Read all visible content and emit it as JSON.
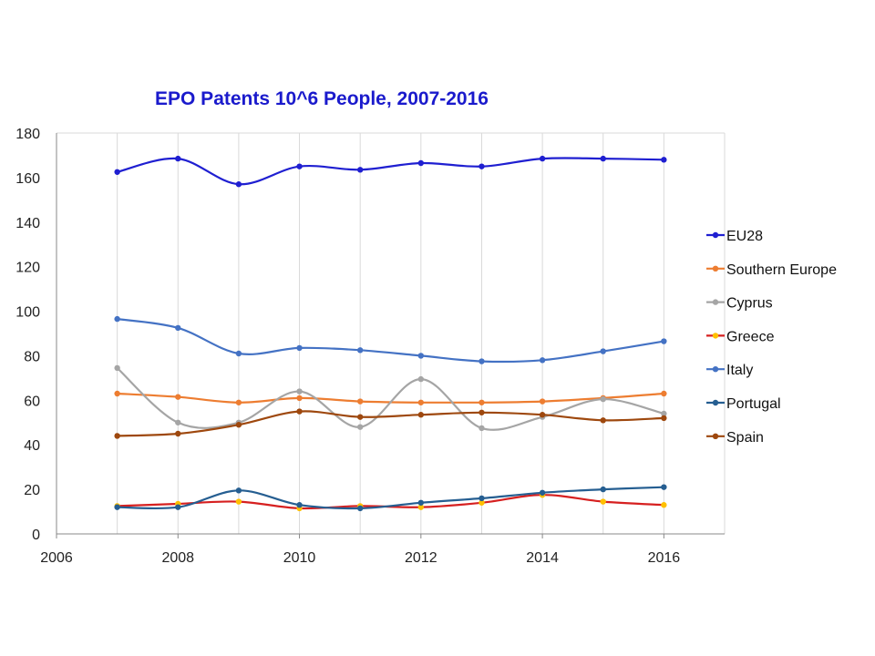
{
  "chart_data": {
    "type": "line",
    "title": "EPO Patents 10^6 People, 2007-2016",
    "xlabel": "",
    "ylabel": "",
    "xlim": [
      2006,
      2017
    ],
    "ylim": [
      0,
      180
    ],
    "x_ticks": [
      "2006",
      "2008",
      "2010",
      "2012",
      "2014",
      "2016"
    ],
    "y_ticks": [
      "0",
      "20",
      "40",
      "60",
      "80",
      "100",
      "120",
      "140",
      "160",
      "180"
    ],
    "grid": "vertical gridlines",
    "legend_position": "right",
    "x": [
      2007,
      2008,
      2009,
      2010,
      2011,
      2012,
      2013,
      2014,
      2015,
      2016
    ],
    "series": [
      {
        "name": "EU28",
        "color": "#1f1fd1",
        "values": [
          162.5,
          168.5,
          157,
          165,
          163.5,
          166.5,
          165,
          168.5,
          168.5,
          168
        ]
      },
      {
        "name": "Southern Europe",
        "color": "#ed7d31",
        "values": [
          63,
          61.5,
          59,
          61,
          59.5,
          59,
          59,
          59.5,
          61,
          63
        ]
      },
      {
        "name": "Cyprus",
        "color": "#a5a5a5",
        "values": [
          74.5,
          50,
          50,
          64,
          48,
          69.5,
          47.5,
          52.5,
          60.5,
          54
        ]
      },
      {
        "name": "Greece",
        "color": "#ffc000",
        "line_color": "#d62020",
        "values": [
          12.5,
          13.5,
          14.5,
          11.5,
          12.5,
          12,
          14,
          17.5,
          14.5,
          13
        ]
      },
      {
        "name": "Italy",
        "color": "#4472c4",
        "values": [
          96.5,
          92.5,
          81,
          83.5,
          82.5,
          80,
          77.5,
          78,
          82,
          86.5
        ]
      },
      {
        "name": "Portugal",
        "color": "#255e91",
        "values": [
          12,
          12,
          19.5,
          13,
          11.5,
          14,
          16,
          18.5,
          20,
          21
        ]
      },
      {
        "name": "Spain",
        "color": "#9e480e",
        "values": [
          44,
          45,
          49,
          55,
          52.5,
          53.5,
          54.5,
          53.5,
          51,
          52
        ]
      }
    ]
  }
}
